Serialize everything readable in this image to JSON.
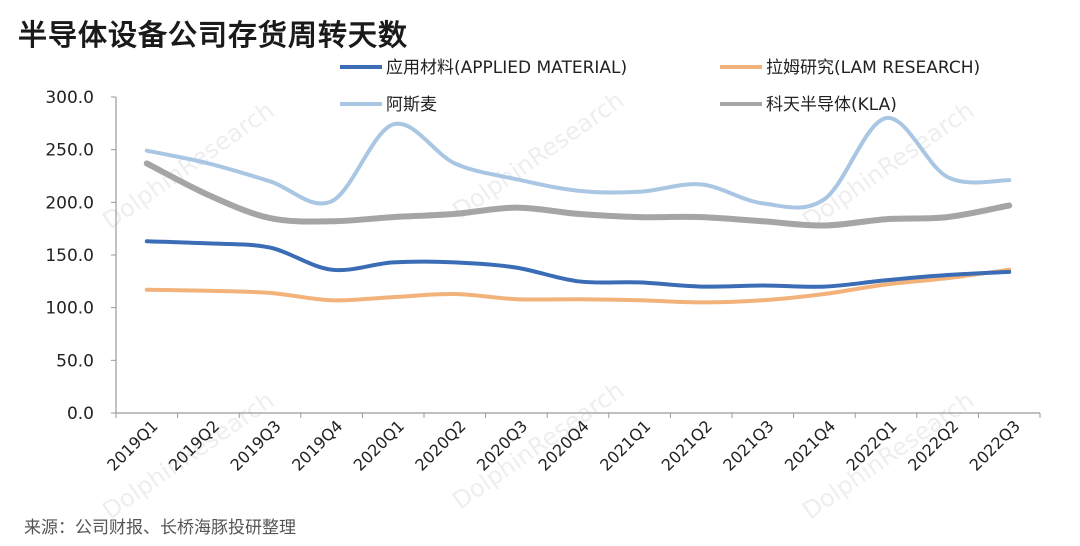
{
  "title": "半导体设备公司存货周转天数",
  "source": "来源：公司财报、长桥海豚投研整理",
  "colors": {
    "applied": "#3a6db5",
    "lam": "#f2b27a",
    "asml": "#a9c6e3",
    "kla": "#a5a5a5",
    "axis": "#9a9a9a"
  },
  "chart_data": {
    "type": "line",
    "title": "半导体设备公司存货周转天数",
    "xlabel": "",
    "ylabel": "",
    "ylim": [
      0,
      300
    ],
    "yticks": [
      0,
      50,
      100,
      150,
      200,
      250,
      300
    ],
    "ytick_labels": [
      "0.0",
      "50.0",
      "100.0",
      "150.0",
      "200.0",
      "250.0",
      "300.0"
    ],
    "categories": [
      "2019Q1",
      "2019Q2",
      "2019Q3",
      "2019Q4",
      "2020Q1",
      "2020Q2",
      "2020Q3",
      "2020Q4",
      "2021Q1",
      "2021Q2",
      "2021Q3",
      "2021Q4",
      "2022Q1",
      "2022Q2",
      "2022Q3"
    ],
    "legend_position": "top",
    "series": [
      {
        "key": "applied",
        "name": "应用材料(APPLIED MATERIAL)",
        "values": [
          163,
          161,
          157,
          136,
          143,
          143,
          138,
          125,
          124,
          120,
          121,
          120,
          126,
          131,
          134
        ]
      },
      {
        "key": "lam",
        "name": "拉姆研究(LAM RESEARCH)",
        "values": [
          117,
          116,
          114,
          107,
          110,
          113,
          108,
          108,
          107,
          105,
          107,
          113,
          122,
          128,
          136
        ]
      },
      {
        "key": "asml",
        "name": "阿斯麦",
        "values": [
          249,
          237,
          220,
          201,
          274,
          237,
          222,
          211,
          210,
          217,
          199,
          203,
          280,
          224,
          221
        ]
      },
      {
        "key": "kla",
        "name": "科天半导体(KLA)",
        "values": [
          237,
          207,
          185,
          182,
          186,
          189,
          195,
          189,
          186,
          186,
          182,
          178,
          184,
          186,
          197
        ]
      }
    ]
  }
}
